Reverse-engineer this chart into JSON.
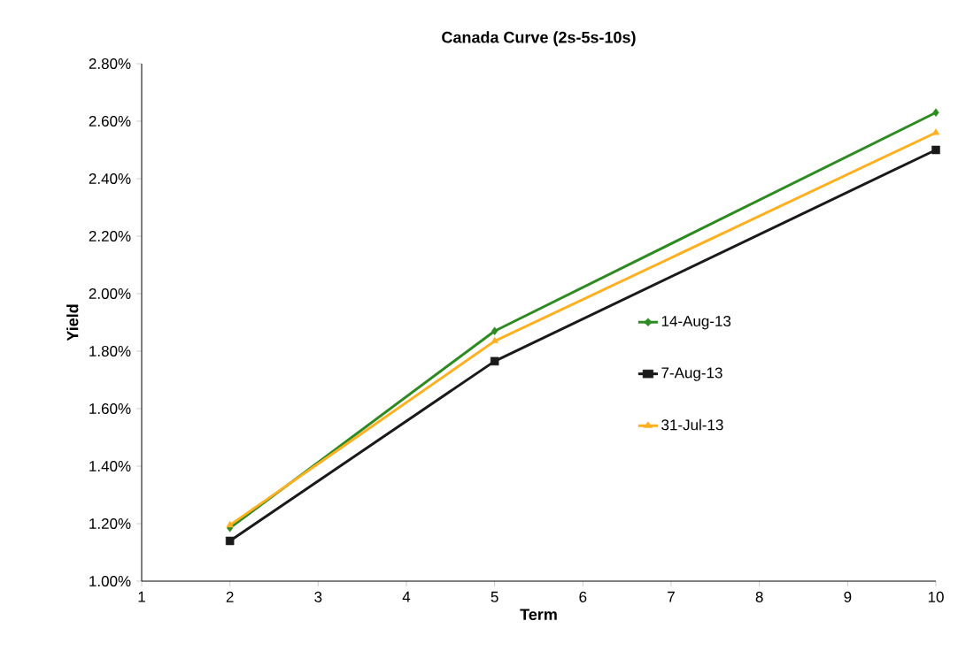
{
  "chart_data": {
    "type": "line",
    "title": "Canada Curve (2s-5s-10s)",
    "xlabel": "Term",
    "ylabel": "Yield",
    "x": [
      2,
      5,
      10
    ],
    "series": [
      {
        "name": "14-Aug-13",
        "color": "#2e8b22",
        "marker": "diamond",
        "values": [
          1.185,
          1.87,
          2.63
        ]
      },
      {
        "name": "7-Aug-13",
        "color": "#1a1a1a",
        "marker": "square",
        "values": [
          1.14,
          1.765,
          2.5
        ]
      },
      {
        "name": "31-Jul-13",
        "color": "#ffb020",
        "marker": "triangle",
        "values": [
          1.195,
          1.835,
          2.56
        ]
      }
    ],
    "xlim": [
      1,
      10
    ],
    "xticks": [
      1,
      2,
      3,
      4,
      5,
      6,
      7,
      8,
      9,
      10
    ],
    "ylim": [
      1.0,
      2.8
    ],
    "yticks": [
      {
        "value": 1.0,
        "label": "1.00%"
      },
      {
        "value": 1.2,
        "label": "1.20%"
      },
      {
        "value": 1.4,
        "label": "1.40%"
      },
      {
        "value": 1.6,
        "label": "1.60%"
      },
      {
        "value": 1.8,
        "label": "1.80%"
      },
      {
        "value": 2.0,
        "label": "2.00%"
      },
      {
        "value": 2.2,
        "label": "2.20%"
      },
      {
        "value": 2.4,
        "label": "2.40%"
      },
      {
        "value": 2.6,
        "label": "2.60%"
      },
      {
        "value": 2.8,
        "label": "2.80%"
      }
    ],
    "grid": false,
    "legend": "right",
    "line_style": "solid"
  }
}
